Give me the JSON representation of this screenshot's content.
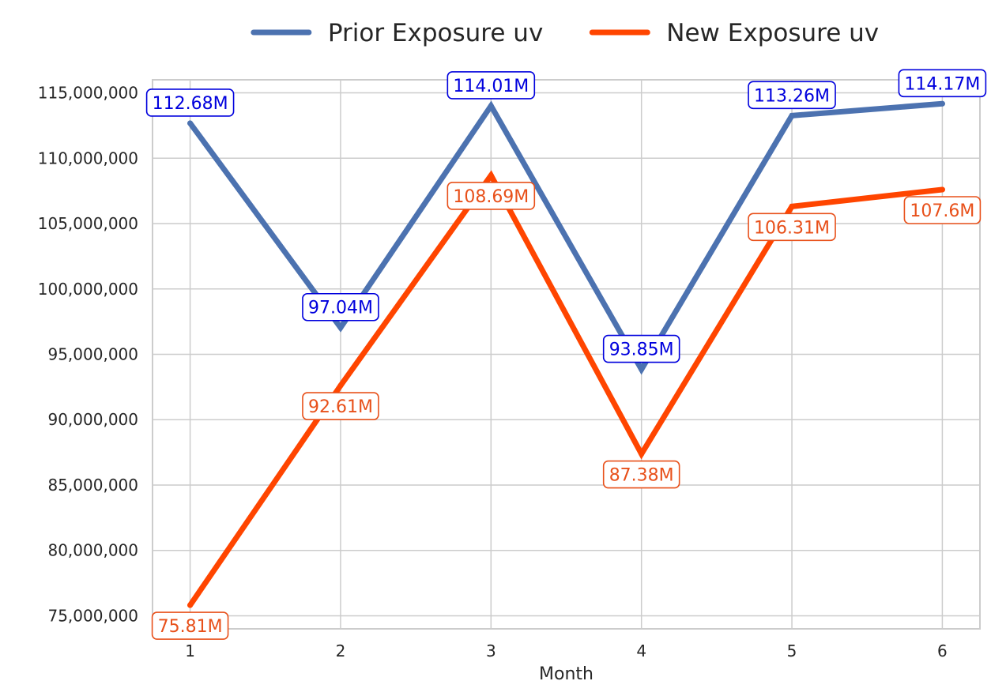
{
  "chart_data": {
    "type": "line",
    "title": "",
    "xlabel": "Month",
    "ylabel": "",
    "x": [
      1,
      2,
      3,
      4,
      5,
      6
    ],
    "xlim": [
      0.75,
      6.25
    ],
    "ylim": [
      74000000,
      116000000
    ],
    "y_ticks": [
      75000000,
      80000000,
      85000000,
      90000000,
      95000000,
      100000000,
      105000000,
      110000000,
      115000000
    ],
    "y_tick_labels": [
      "75,000,000",
      "80,000,000",
      "85,000,000",
      "90,000,000",
      "95,000,000",
      "100,000,000",
      "105,000,000",
      "110,000,000",
      "115,000,000"
    ],
    "x_tick_labels": [
      "1",
      "2",
      "3",
      "4",
      "5",
      "6"
    ],
    "grid": true,
    "legend_position": "top-center",
    "series": [
      {
        "name": "Prior Exposure uv",
        "color": "#4c72b0",
        "label_color": "#0000dd",
        "label_placement": "above",
        "values": [
          112680000,
          97040000,
          114010000,
          93850000,
          113260000,
          114170000
        ],
        "labels": [
          "112.68M",
          "97.04M",
          "114.01M",
          "93.85M",
          "113.26M",
          "114.17M"
        ]
      },
      {
        "name": "New Exposure uv",
        "color": "#ff4500",
        "label_color": "#e8501a",
        "label_placement": "below",
        "values": [
          75810000,
          92610000,
          108690000,
          87380000,
          106310000,
          107600000
        ],
        "labels": [
          "75.81M",
          "92.61M",
          "108.69M",
          "87.38M",
          "106.31M",
          "107.6M"
        ]
      }
    ]
  }
}
